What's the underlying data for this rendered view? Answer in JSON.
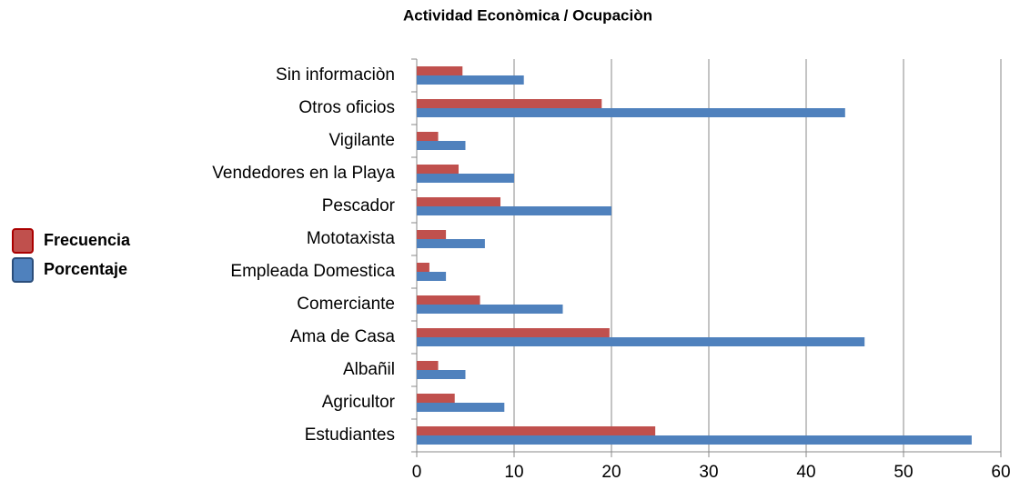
{
  "chart_data": {
    "type": "hbar",
    "title": "Actividad Econòmica / Ocupaciòn",
    "categories": [
      "Estudiantes",
      "Agricultor ",
      "Albañil",
      "Ama de Casa",
      "Comerciante",
      "Empleada Domestica",
      "Mototaxista",
      "Pescador",
      "Vendedores en la Playa",
      "Vigilante",
      "Otros oficios",
      "Sin informaciòn "
    ],
    "series": [
      {
        "name": "Frecuencia",
        "color": "#c0504d",
        "values": [
          24.5,
          3.9,
          2.2,
          19.8,
          6.5,
          1.3,
          3.0,
          8.6,
          4.3,
          2.2,
          19,
          4.7
        ]
      },
      {
        "name": "Porcentaje",
        "color": "#4f81bd",
        "values": [
          57,
          9,
          5,
          46,
          15,
          3,
          7,
          20,
          10,
          5,
          44,
          11
        ]
      }
    ],
    "xlim": [
      0,
      60
    ],
    "xticks": [
      0,
      10,
      20,
      30,
      40,
      50,
      60
    ],
    "grid": true,
    "legend": "left"
  }
}
